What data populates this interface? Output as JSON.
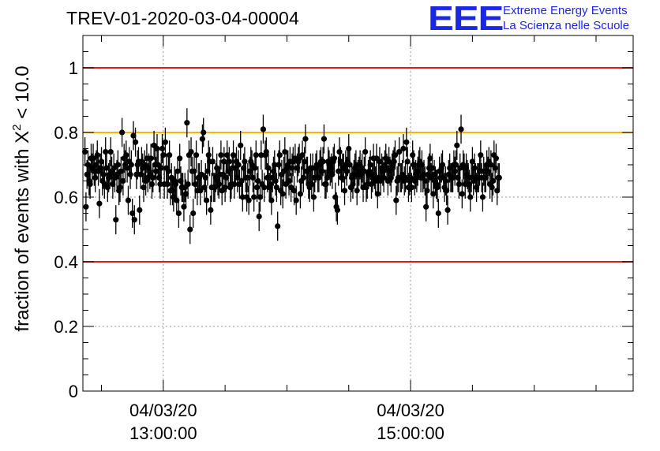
{
  "header": {
    "title": "TREV-01-2020-03-04-00004",
    "logo_mark": "EEE",
    "logo_line1": "Extreme Energy Events",
    "logo_line2": "La Scienza nelle Scuole"
  },
  "colors": {
    "threshold_red": "#e31a1c",
    "threshold_orange": "#ffb300",
    "marker": "#000000",
    "grid": "#9a9a9a",
    "logo_blue": "#1c27e6"
  },
  "chart_data": {
    "type": "scatter",
    "title": "TREV-01-2020-03-04-00004",
    "ylabel_parts": [
      "fraction of events with X",
      "2",
      " < 10.0"
    ],
    "ylim": [
      0,
      1.1
    ],
    "yticks": [
      0,
      0.2,
      0.4,
      0.6,
      0.8,
      1
    ],
    "ytick_labels": [
      "0",
      "0.2",
      "0.4",
      "0.6",
      "0.8",
      "1"
    ],
    "xlim": [
      "2020-03-04 12:21",
      "2020-03-04 16:48"
    ],
    "xticks": [
      {
        "time": "2020-03-04 13:00",
        "label": [
          "04/03/20",
          "13:00:00"
        ]
      },
      {
        "time": "2020-03-04 15:00",
        "label": [
          "04/03/20",
          "15:00:00"
        ]
      }
    ],
    "grid": true,
    "reference_lines": [
      {
        "y": 1.0,
        "color": "red"
      },
      {
        "y": 0.8,
        "color": "orange"
      },
      {
        "y": 0.4,
        "color": "red"
      }
    ],
    "series": [
      {
        "start_time": "2020-03-04 12:22",
        "interval_minutes": 0.5,
        "error": 0.045,
        "values": [
          0.74,
          0.57,
          0.67,
          0.7,
          0.65,
          0.64,
          0.72,
          0.69,
          0.72,
          0.68,
          0.66,
          0.7,
          0.73,
          0.68,
          0.58,
          0.69,
          0.71,
          0.65,
          0.67,
          0.64,
          0.74,
          0.69,
          0.63,
          0.66,
          0.67,
          0.74,
          0.68,
          0.64,
          0.69,
          0.66,
          0.53,
          0.67,
          0.7,
          0.62,
          0.63,
          0.68,
          0.8,
          0.65,
          0.72,
          0.7,
          0.73,
          0.69,
          0.59,
          0.71,
          0.67,
          0.7,
          0.55,
          0.79,
          0.53,
          0.77,
          0.67,
          0.7,
          0.71,
          0.56,
          0.67,
          0.71,
          0.69,
          0.63,
          0.7,
          0.65,
          0.72,
          0.66,
          0.69,
          0.67,
          0.72,
          0.64,
          0.66,
          0.76,
          0.7,
          0.68,
          0.75,
          0.7,
          0.66,
          0.64,
          0.69,
          0.75,
          0.73,
          0.64,
          0.77,
          0.69,
          0.64,
          0.68,
          0.73,
          0.62,
          0.66,
          0.62,
          0.6,
          0.65,
          0.64,
          0.59,
          0.68,
          0.55,
          0.72,
          0.65,
          0.63,
          0.63,
          0.57,
          0.63,
          0.61,
          0.83,
          0.64,
          0.73,
          0.5,
          0.74,
          0.68,
          0.55,
          0.68,
          0.64,
          0.73,
          0.62,
          0.66,
          0.66,
          0.62,
          0.67,
          0.78,
          0.8,
          0.63,
          0.66,
          0.59,
          0.68,
          0.73,
          0.71,
          0.56,
          0.63,
          0.71,
          0.63,
          0.63,
          0.66,
          0.69,
          0.65,
          0.64,
          0.67,
          0.73,
          0.62,
          0.67,
          0.71,
          0.63,
          0.66,
          0.73,
          0.68,
          0.71,
          0.63,
          0.64,
          0.69,
          0.73,
          0.64,
          0.69,
          0.71,
          0.66,
          0.7,
          0.64,
          0.76,
          0.65,
          0.6,
          0.69,
          0.71,
          0.66,
          0.6,
          0.66,
          0.59,
          0.68,
          0.71,
          0.7,
          0.66,
          0.6,
          0.69,
          0.73,
          0.63,
          0.65,
          0.54,
          0.6,
          0.73,
          0.64,
          0.81,
          0.63,
          0.73,
          0.74,
          0.66,
          0.69,
          0.63,
          0.64,
          0.59,
          0.66,
          0.68,
          0.7,
          0.65,
          0.63,
          0.51,
          0.7,
          0.73,
          0.62,
          0.67,
          0.61,
          0.68,
          0.74,
          0.64,
          0.69,
          0.7,
          0.65,
          0.71,
          0.63,
          0.69,
          0.71,
          0.62,
          0.72,
          0.59,
          0.69,
          0.71,
          0.72,
          0.61,
          0.65,
          0.73,
          0.66,
          0.71,
          0.78,
          0.68,
          0.68,
          0.64,
          0.63,
          0.69,
          0.64,
          0.69,
          0.6,
          0.66,
          0.69,
          0.7,
          0.66,
          0.66,
          0.7,
          0.71,
          0.68,
          0.71,
          0.78,
          0.64,
          0.64,
          0.66,
          0.71,
          0.7,
          0.68,
          0.69,
          0.67,
          0.71,
          0.72,
          0.6,
          0.57,
          0.56,
          0.68,
          0.74,
          0.71,
          0.66,
          0.69,
          0.69,
          0.62,
          0.7,
          0.68,
          0.71,
          0.75,
          0.7,
          0.63,
          0.66,
          0.64,
          0.67,
          0.69,
          0.7,
          0.62,
          0.67,
          0.68,
          0.7,
          0.67,
          0.69,
          0.63,
          0.68,
          0.74,
          0.63,
          0.64,
          0.67,
          0.68,
          0.7,
          0.64,
          0.66,
          0.72,
          0.67,
          0.65,
          0.72,
          0.61,
          0.66,
          0.71,
          0.65,
          0.69,
          0.68,
          0.66,
          0.7,
          0.72,
          0.69,
          0.65,
          0.71,
          0.68,
          0.66,
          0.69,
          0.7,
          0.71,
          0.73,
          0.59,
          0.65,
          0.66,
          0.74,
          0.66,
          0.66,
          0.67,
          0.75,
          0.65,
          0.66,
          0.77,
          0.71,
          0.63,
          0.65,
          0.66,
          0.63,
          0.73,
          0.7,
          0.65,
          0.67,
          0.66,
          0.68,
          0.7,
          0.71,
          0.66,
          0.7,
          0.66,
          0.67,
          0.65,
          0.57,
          0.62,
          0.67,
          0.69,
          0.72,
          0.66,
          0.69,
          0.61,
          0.67,
          0.65,
          0.64,
          0.63,
          0.55,
          0.68,
          0.66,
          0.69,
          0.7,
          0.66,
          0.63,
          0.65,
          0.62,
          0.56,
          0.67,
          0.69,
          0.66,
          0.66,
          0.66,
          0.7,
          0.68,
          0.7,
          0.76,
          0.66,
          0.64,
          0.69,
          0.81,
          0.61,
          0.7,
          0.69,
          0.64,
          0.69,
          0.67,
          0.66,
          0.64,
          0.6,
          0.66,
          0.71,
          0.65,
          0.69,
          0.66,
          0.63,
          0.66,
          0.66,
          0.68,
          0.73,
          0.66,
          0.6,
          0.68,
          0.66,
          0.66,
          0.7,
          0.68,
          0.71,
          0.64,
          0.7,
          0.63,
          0.65,
          0.73,
          0.69,
          0.72,
          0.62,
          0.66,
          0.66
        ]
      }
    ]
  }
}
